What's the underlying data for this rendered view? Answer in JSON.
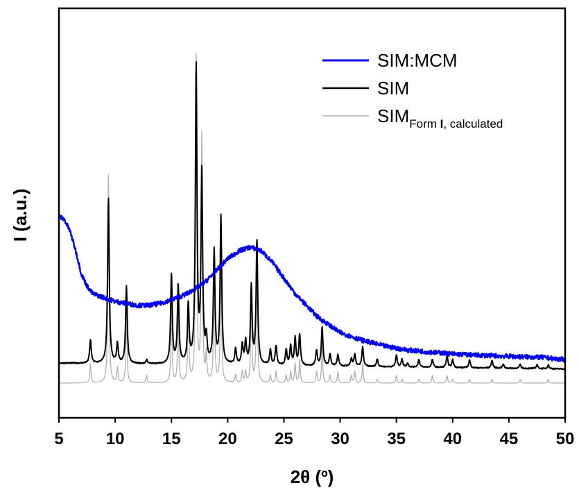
{
  "chart_data": {
    "type": "line",
    "xlabel": "2θ (º)",
    "ylabel": "I (a.u.)",
    "xlim": [
      5,
      50
    ],
    "x_ticks": [
      5,
      10,
      15,
      20,
      25,
      30,
      35,
      40,
      45,
      50
    ],
    "y_ticks_shown": false,
    "grid": false,
    "legend_position": "top-right",
    "legend": [
      {
        "name": "SIM:MCM",
        "color": "#0000ee"
      },
      {
        "name": "SIM",
        "color": "#000000"
      },
      {
        "name": "SIM",
        "subscript_pre": "Form ",
        "subscript_bold": "I",
        "subscript_post": ", calculated",
        "color": "#b0b0b0"
      }
    ],
    "series": [
      {
        "name": "SIM:MCM",
        "color": "#0000ee",
        "baseline": [
          [
            5,
            0.43
          ],
          [
            5.5,
            0.42
          ],
          [
            6,
            0.39
          ],
          [
            6.5,
            0.34
          ],
          [
            7,
            0.28
          ],
          [
            7.5,
            0.25
          ],
          [
            8,
            0.23
          ],
          [
            9,
            0.22
          ],
          [
            10,
            0.21
          ],
          [
            11,
            0.205
          ],
          [
            12,
            0.2
          ],
          [
            13,
            0.2
          ],
          [
            14,
            0.205
          ],
          [
            15,
            0.215
          ],
          [
            16,
            0.225
          ],
          [
            17,
            0.24
          ],
          [
            18,
            0.26
          ],
          [
            19,
            0.29
          ],
          [
            20,
            0.32
          ],
          [
            21,
            0.34
          ],
          [
            22,
            0.35
          ],
          [
            23,
            0.34
          ],
          [
            24,
            0.31
          ],
          [
            25,
            0.27
          ],
          [
            26,
            0.23
          ],
          [
            27,
            0.2
          ],
          [
            28,
            0.17
          ],
          [
            29,
            0.15
          ],
          [
            30,
            0.13
          ],
          [
            32,
            0.11
          ],
          [
            34,
            0.095
          ],
          [
            36,
            0.085
          ],
          [
            38,
            0.08
          ],
          [
            40,
            0.075
          ],
          [
            42,
            0.072
          ],
          [
            44,
            0.07
          ],
          [
            46,
            0.068
          ],
          [
            48,
            0.066
          ],
          [
            50,
            0.06
          ]
        ],
        "peaks": []
      },
      {
        "name": "SIM",
        "color": "#000000",
        "baseline": [
          [
            5,
            0.03
          ],
          [
            20,
            0.025
          ],
          [
            35,
            0.02
          ],
          [
            50,
            0.015
          ]
        ],
        "peaks": [
          [
            7.8,
            0.06
          ],
          [
            9.4,
            0.43
          ],
          [
            10.2,
            0.05
          ],
          [
            11.0,
            0.2
          ],
          [
            12.8,
            0.01
          ],
          [
            15.0,
            0.23
          ],
          [
            15.6,
            0.2
          ],
          [
            16.5,
            0.15
          ],
          [
            17.2,
            0.77
          ],
          [
            17.7,
            0.49
          ],
          [
            18.1,
            0.06
          ],
          [
            18.8,
            0.29
          ],
          [
            19.4,
            0.38
          ],
          [
            20.7,
            0.04
          ],
          [
            21.3,
            0.05
          ],
          [
            21.6,
            0.06
          ],
          [
            22.1,
            0.2
          ],
          [
            22.6,
            0.32
          ],
          [
            23.8,
            0.04
          ],
          [
            24.3,
            0.05
          ],
          [
            25.2,
            0.04
          ],
          [
            25.6,
            0.05
          ],
          [
            26.0,
            0.07
          ],
          [
            26.4,
            0.08
          ],
          [
            27.9,
            0.04
          ],
          [
            28.4,
            0.1
          ],
          [
            29.1,
            0.03
          ],
          [
            29.8,
            0.03
          ],
          [
            31.0,
            0.02
          ],
          [
            31.3,
            0.03
          ],
          [
            32.0,
            0.05
          ],
          [
            33.3,
            0.02
          ],
          [
            35.0,
            0.03
          ],
          [
            35.5,
            0.02
          ],
          [
            36.0,
            0.01
          ],
          [
            37.0,
            0.02
          ],
          [
            38.2,
            0.02
          ],
          [
            39.5,
            0.03
          ],
          [
            40.0,
            0.02
          ],
          [
            41.5,
            0.02
          ],
          [
            43.5,
            0.02
          ],
          [
            44.5,
            0.01
          ],
          [
            46.0,
            0.01
          ],
          [
            47.5,
            0.01
          ],
          [
            48.5,
            0.01
          ]
        ]
      },
      {
        "name": "SIM Form I, calculated",
        "color": "#b0b0b0",
        "baseline": [
          [
            5,
            0.0
          ],
          [
            50,
            0.0
          ]
        ],
        "peaks": [
          [
            7.8,
            0.05
          ],
          [
            9.4,
            0.55
          ],
          [
            10.2,
            0.04
          ],
          [
            11.0,
            0.18
          ],
          [
            12.8,
            0.02
          ],
          [
            15.0,
            0.2
          ],
          [
            15.6,
            0.18
          ],
          [
            16.5,
            0.2
          ],
          [
            17.2,
            0.86
          ],
          [
            17.7,
            0.65
          ],
          [
            18.1,
            0.07
          ],
          [
            18.8,
            0.3
          ],
          [
            19.4,
            0.35
          ],
          [
            20.7,
            0.02
          ],
          [
            21.3,
            0.03
          ],
          [
            21.6,
            0.03
          ],
          [
            22.1,
            0.22
          ],
          [
            22.6,
            0.35
          ],
          [
            23.8,
            0.02
          ],
          [
            24.3,
            0.03
          ],
          [
            25.2,
            0.02
          ],
          [
            25.6,
            0.03
          ],
          [
            26.0,
            0.05
          ],
          [
            26.4,
            0.06
          ],
          [
            27.9,
            0.03
          ],
          [
            28.4,
            0.09
          ],
          [
            29.1,
            0.02
          ],
          [
            29.8,
            0.03
          ],
          [
            31.0,
            0.02
          ],
          [
            31.3,
            0.03
          ],
          [
            32.0,
            0.05
          ],
          [
            33.3,
            0.01
          ],
          [
            35.0,
            0.02
          ],
          [
            35.5,
            0.01
          ],
          [
            37.0,
            0.01
          ],
          [
            38.2,
            0.02
          ],
          [
            39.5,
            0.02
          ],
          [
            40.0,
            0.01
          ],
          [
            41.5,
            0.01
          ],
          [
            43.5,
            0.01
          ],
          [
            46.0,
            0.01
          ],
          [
            48.5,
            0.01
          ]
        ]
      }
    ]
  }
}
